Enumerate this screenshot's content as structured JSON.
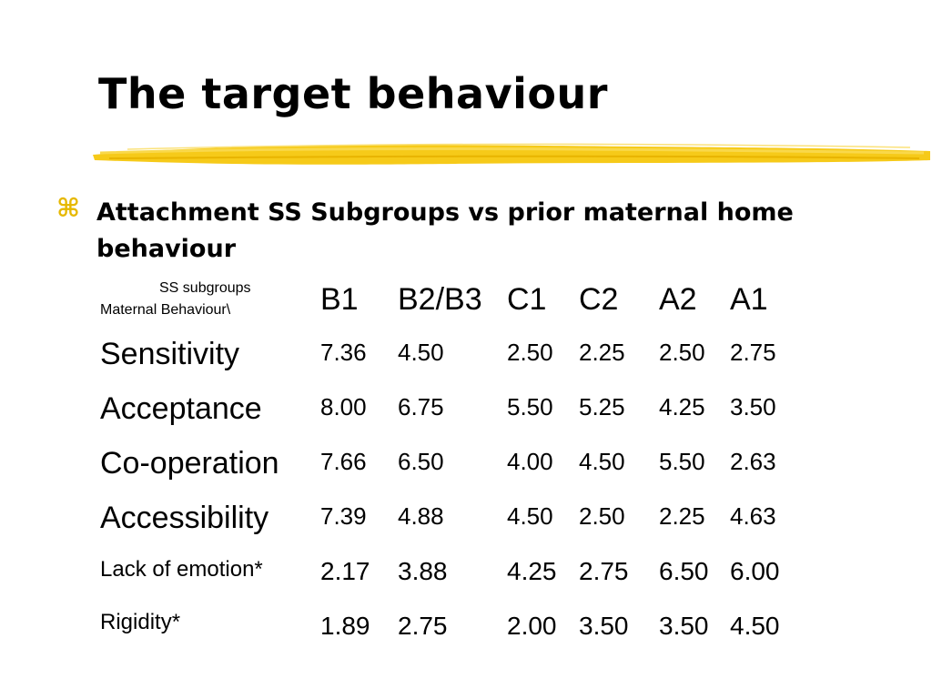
{
  "slide": {
    "title": "The target behaviour",
    "bullet_icon": "command-key-icon",
    "bullet_text": "Attachment SS Subgroups vs prior maternal home behaviour",
    "accent_color": "#f5c400"
  },
  "table": {
    "corner_top": "SS subgroups",
    "corner_bottom": "Maternal Behaviour\\",
    "columns": [
      "B1",
      "B2/B3",
      "C1",
      "C2",
      "A2",
      "A1"
    ],
    "rows": [
      {
        "label": "Sensitivity",
        "values": [
          "7.36",
          "4.50",
          "2.50",
          "2.25",
          "2.50",
          "2.75"
        ]
      },
      {
        "label": "Acceptance",
        "values": [
          "8.00",
          "6.75",
          "5.50",
          "5.25",
          "4.25",
          "3.50"
        ]
      },
      {
        "label": "Co-operation",
        "values": [
          "7.66",
          "6.50",
          "4.00",
          "4.50",
          "5.50",
          "2.63"
        ]
      },
      {
        "label": "Accessibility",
        "values": [
          "7.39",
          "4.88",
          "4.50",
          "2.50",
          "2.25",
          "4.63"
        ]
      },
      {
        "label": "Lack of emotion*",
        "values": [
          "2.17",
          "3.88",
          "4.25",
          "2.75",
          "6.50",
          "6.00"
        ]
      },
      {
        "label": "Rigidity*",
        "values": [
          "1.89",
          "2.75",
          "2.00",
          "3.50",
          "3.50",
          "4.50"
        ]
      }
    ]
  }
}
